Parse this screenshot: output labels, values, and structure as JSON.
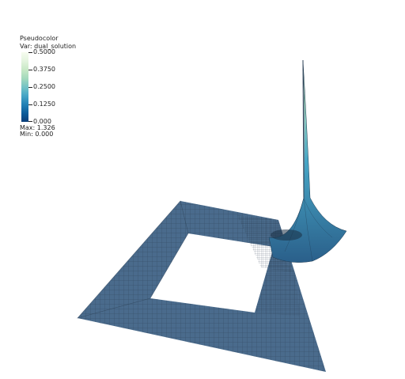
{
  "legend": {
    "title": "Pseudocolor",
    "var_label": "Var: dual_solution",
    "ticks": [
      "0.5000",
      "0.3750",
      "0.2500",
      "0.1250",
      "0.000"
    ],
    "max_label": "Max:  1.326",
    "min_label": "Min:  0.000"
  },
  "colors": {
    "mesh_base": "#4a6b8c",
    "mesh_line": "#2b3f55",
    "peak_high": "#e4f4df",
    "peak_mid": "#47a6c6"
  }
}
